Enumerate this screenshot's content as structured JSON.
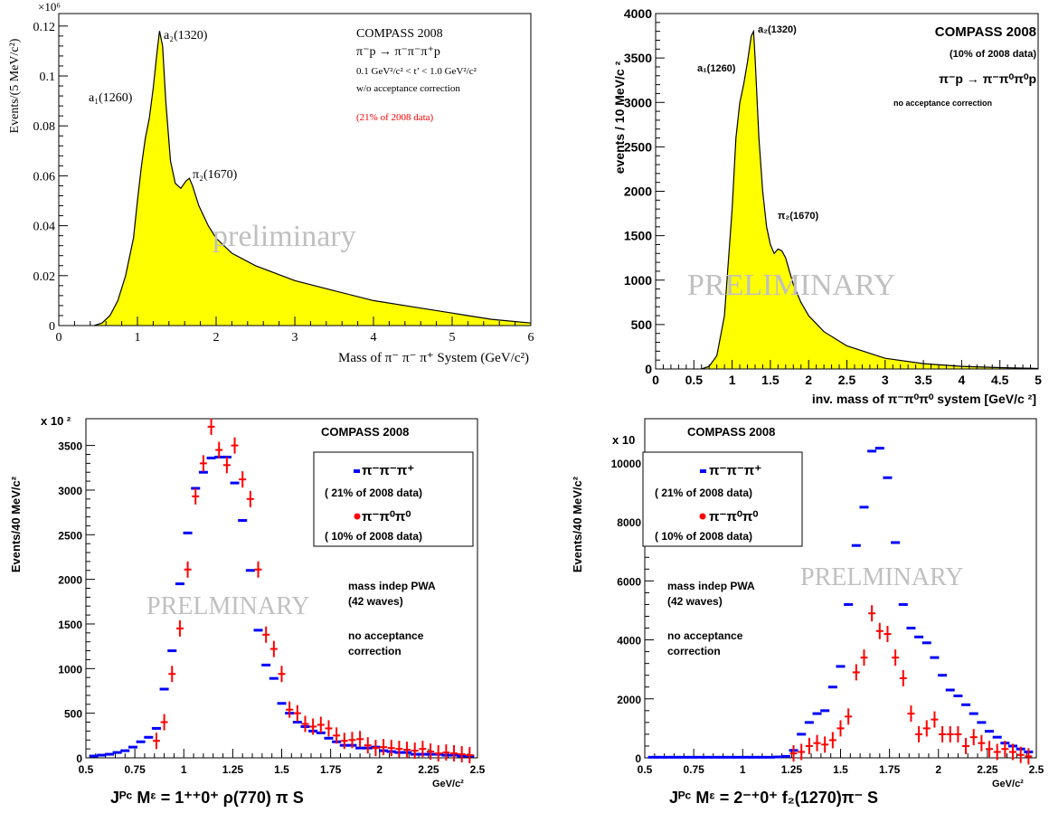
{
  "chart_data": [
    {
      "type": "area",
      "ylabel": "Events/(5 MeV/c²)",
      "xlabel": "Mass of π⁻ π⁻ π⁺ System (GeV/c²)",
      "scale_label": "×10⁶",
      "xlim": [
        0,
        6
      ],
      "ylim": [
        0,
        0.125
      ],
      "xticks": [
        "0",
        "1",
        "2",
        "3",
        "4",
        "5",
        "6"
      ],
      "yticks": [
        "0",
        "0.02",
        "0.04",
        "0.06",
        "0.08",
        "0.1",
        "0.12"
      ],
      "x": [
        0.45,
        0.55,
        0.65,
        0.75,
        0.85,
        0.95,
        1.0,
        1.05,
        1.1,
        1.15,
        1.2,
        1.25,
        1.28,
        1.32,
        1.36,
        1.42,
        1.48,
        1.55,
        1.62,
        1.66,
        1.7,
        1.78,
        1.9,
        2.0,
        2.2,
        2.5,
        3.0,
        3.5,
        4.0,
        4.5,
        5.0,
        5.5,
        6.0
      ],
      "values": [
        0.0,
        0.001,
        0.004,
        0.01,
        0.02,
        0.035,
        0.05,
        0.064,
        0.075,
        0.083,
        0.095,
        0.11,
        0.118,
        0.112,
        0.09,
        0.066,
        0.057,
        0.055,
        0.058,
        0.059,
        0.056,
        0.048,
        0.04,
        0.035,
        0.029,
        0.024,
        0.018,
        0.014,
        0.01,
        0.0075,
        0.005,
        0.0025,
        0.001
      ],
      "annotations": {
        "a1": "a₁(1260)",
        "a2": "a₂(1320)",
        "pi2": "π₂(1670)",
        "experiment": "COMPASS 2008",
        "reaction": "π⁻p → π⁻π⁻π⁺p",
        "cut": "0.1 GeV²/c² < t’ < 1.0 GeV²/c²",
        "acceptance": "w/o acceptance correction",
        "fraction": "(21% of 2008 data)",
        "watermark": "preliminary"
      },
      "colors": {
        "fill": "#ffff00",
        "fraction": "#ff0000",
        "watermark": "#c0c0c0"
      }
    },
    {
      "type": "area",
      "ylabel": "events / 10 MeV/c ²",
      "xlabel": "inv. mass of  π⁻π⁰π⁰ system [GeV/c ²]",
      "xlim": [
        0,
        5
      ],
      "ylim": [
        0,
        4000
      ],
      "xticks": [
        "0",
        "0.5",
        "1",
        "1.5",
        "2",
        "2.5",
        "3",
        "3.5",
        "4",
        "4.5",
        "5"
      ],
      "yticks": [
        "0",
        "500",
        "1000",
        "1500",
        "2000",
        "2500",
        "3000",
        "3500",
        "4000"
      ],
      "x": [
        0.6,
        0.7,
        0.8,
        0.9,
        1.0,
        1.05,
        1.1,
        1.15,
        1.2,
        1.25,
        1.28,
        1.3,
        1.35,
        1.4,
        1.45,
        1.5,
        1.55,
        1.6,
        1.65,
        1.7,
        1.75,
        1.8,
        1.9,
        2.0,
        2.2,
        2.5,
        3.0,
        3.5,
        4.0,
        4.5,
        5.0
      ],
      "values": [
        0,
        30,
        150,
        600,
        1800,
        2600,
        3000,
        3200,
        3450,
        3750,
        3800,
        3500,
        2600,
        2000,
        1600,
        1400,
        1300,
        1350,
        1330,
        1250,
        1100,
        950,
        750,
        600,
        420,
        260,
        120,
        60,
        30,
        15,
        5
      ],
      "annotations": {
        "a1": "a₁(1260)",
        "a2": "a₂(1320)",
        "pi2": "π₂(1670)",
        "experiment": "COMPASS 2008",
        "fraction": "(10% of 2008 data)",
        "reaction": "π⁻p → π⁻π⁰π⁰p",
        "acceptance": "no acceptance correction",
        "watermark": "PRELIMINARY"
      },
      "colors": {
        "fill": "#ffff00",
        "watermark": "#c0c0c0"
      }
    },
    {
      "type": "scatter",
      "ylabel": "Events/40 MeV/c²",
      "xlabel": "Jᴾᶜ Mᵋ = 1⁺⁺0⁺ ρ(770) π S",
      "xunit": "GeV/c²",
      "scale_label": "x 10 ²",
      "xlim": [
        0.5,
        2.5
      ],
      "ylim": [
        0,
        3800
      ],
      "xticks": [
        "0.5",
        "0.75",
        "1",
        "1.25",
        "1.5",
        "1.75",
        "2",
        "2.25",
        "2.5"
      ],
      "yticks": [
        "0",
        "500",
        "1000",
        "1500",
        "2000",
        "2500",
        "3000",
        "3500"
      ],
      "series": [
        {
          "name": "π⁻π⁻π⁺",
          "note": "( 21% of 2008 data)",
          "color": "#0000ff",
          "x": [
            0.54,
            0.58,
            0.62,
            0.66,
            0.7,
            0.74,
            0.78,
            0.82,
            0.86,
            0.9,
            0.94,
            0.98,
            1.02,
            1.06,
            1.1,
            1.14,
            1.18,
            1.22,
            1.26,
            1.3,
            1.34,
            1.38,
            1.42,
            1.46,
            1.5,
            1.54,
            1.58,
            1.62,
            1.66,
            1.7,
            1.74,
            1.78,
            1.82,
            1.86,
            1.9,
            1.94,
            1.98,
            2.02,
            2.06,
            2.1,
            2.14,
            2.18,
            2.22,
            2.26,
            2.3,
            2.34,
            2.38,
            2.42,
            2.46
          ],
          "values": [
            20,
            30,
            40,
            60,
            80,
            120,
            180,
            230,
            330,
            770,
            1200,
            1950,
            2520,
            3020,
            3200,
            3360,
            3370,
            3370,
            3080,
            2660,
            2100,
            1430,
            1040,
            890,
            610,
            500,
            400,
            350,
            300,
            280,
            220,
            180,
            140,
            140,
            110,
            110,
            120,
            80,
            70,
            60,
            60,
            40,
            40,
            40,
            40,
            30,
            30,
            20,
            20
          ]
        },
        {
          "name": "π⁻π⁰π⁰",
          "note": "( 10% of 2008 data)",
          "color": "#ff0000",
          "x": [
            0.86,
            0.9,
            0.94,
            0.98,
            1.02,
            1.06,
            1.1,
            1.14,
            1.18,
            1.22,
            1.26,
            1.3,
            1.34,
            1.38,
            1.42,
            1.46,
            1.5,
            1.54,
            1.58,
            1.62,
            1.66,
            1.7,
            1.74,
            1.78,
            1.82,
            1.86,
            1.9,
            1.94,
            1.98,
            2.02,
            2.06,
            2.1,
            2.14,
            2.18,
            2.22,
            2.26,
            2.3,
            2.34,
            2.38,
            2.42,
            2.46
          ],
          "values": [
            190,
            400,
            940,
            1450,
            2110,
            2930,
            3300,
            3710,
            3450,
            3280,
            3500,
            3120,
            2900,
            2110,
            1380,
            1220,
            940,
            540,
            500,
            380,
            350,
            370,
            330,
            250,
            190,
            200,
            210,
            140,
            110,
            120,
            110,
            100,
            90,
            80,
            100,
            70,
            50,
            60,
            50,
            40,
            30
          ]
        }
      ],
      "annotations": {
        "experiment": "COMPASS 2008",
        "pwa": "mass indep PWA",
        "waves": "(42 waves)",
        "acc1": "no acceptance",
        "acc2": "correction",
        "watermark": "PRELMINARY"
      }
    },
    {
      "type": "scatter",
      "ylabel": "Events/40 MeV/c²",
      "xlabel": "Jᴾᶜ Mᵋ = 2⁻⁺0⁺ f₂(1270)π⁻ S",
      "xunit": "GeV/c²",
      "scale_label": "x 10",
      "xlim": [
        0.5,
        2.5
      ],
      "ylim": [
        0,
        11500
      ],
      "xticks": [
        "0.5",
        "0.75",
        "1",
        "1.25",
        "1.5",
        "1.75",
        "2",
        "2.25",
        "2.5"
      ],
      "yticks": [
        "0",
        "2000",
        "4000",
        "6000",
        "8000",
        "10000"
      ],
      "series": [
        {
          "name": "π⁻π⁻π⁺",
          "note": "( 21% of 2008 data)",
          "color": "#0000ff",
          "x": [
            0.54,
            0.58,
            0.62,
            0.66,
            0.7,
            0.74,
            0.78,
            0.82,
            0.86,
            0.9,
            0.94,
            0.98,
            1.02,
            1.06,
            1.1,
            1.14,
            1.18,
            1.22,
            1.26,
            1.3,
            1.34,
            1.38,
            1.42,
            1.46,
            1.5,
            1.54,
            1.58,
            1.62,
            1.66,
            1.7,
            1.74,
            1.78,
            1.82,
            1.86,
            1.9,
            1.94,
            1.98,
            2.02,
            2.06,
            2.1,
            2.14,
            2.18,
            2.22,
            2.26,
            2.3,
            2.34,
            2.38,
            2.42,
            2.46
          ],
          "values": [
            20,
            20,
            20,
            20,
            20,
            20,
            20,
            20,
            20,
            20,
            20,
            20,
            20,
            20,
            20,
            20,
            30,
            50,
            250,
            800,
            1200,
            1500,
            1600,
            2400,
            3100,
            5200,
            7200,
            8500,
            10400,
            10500,
            9500,
            7300,
            5200,
            4400,
            4100,
            3900,
            3400,
            2800,
            2300,
            2100,
            1800,
            1500,
            1200,
            900,
            700,
            500,
            400,
            300,
            200
          ]
        },
        {
          "name": "π⁻π⁰π⁰",
          "note": "( 10% of 2008 data)",
          "color": "#ff0000",
          "x": [
            1.26,
            1.3,
            1.34,
            1.38,
            1.42,
            1.46,
            1.5,
            1.54,
            1.58,
            1.62,
            1.66,
            1.7,
            1.74,
            1.78,
            1.82,
            1.86,
            1.9,
            1.94,
            1.98,
            2.02,
            2.06,
            2.1,
            2.14,
            2.18,
            2.22,
            2.26,
            2.3,
            2.34,
            2.38,
            2.42,
            2.46
          ],
          "values": [
            150,
            200,
            400,
            500,
            450,
            600,
            1000,
            1400,
            2900,
            3400,
            4900,
            4300,
            4200,
            3400,
            2700,
            1500,
            800,
            1000,
            1300,
            800,
            800,
            800,
            400,
            700,
            500,
            300,
            200,
            300,
            200,
            100,
            50
          ]
        }
      ],
      "annotations": {
        "experiment": "COMPASS 2008",
        "pwa": "mass indep PWA",
        "waves": "(42 waves)",
        "acc1": "no acceptance",
        "acc2": "correction",
        "watermark": "PRELMINARY"
      }
    }
  ]
}
